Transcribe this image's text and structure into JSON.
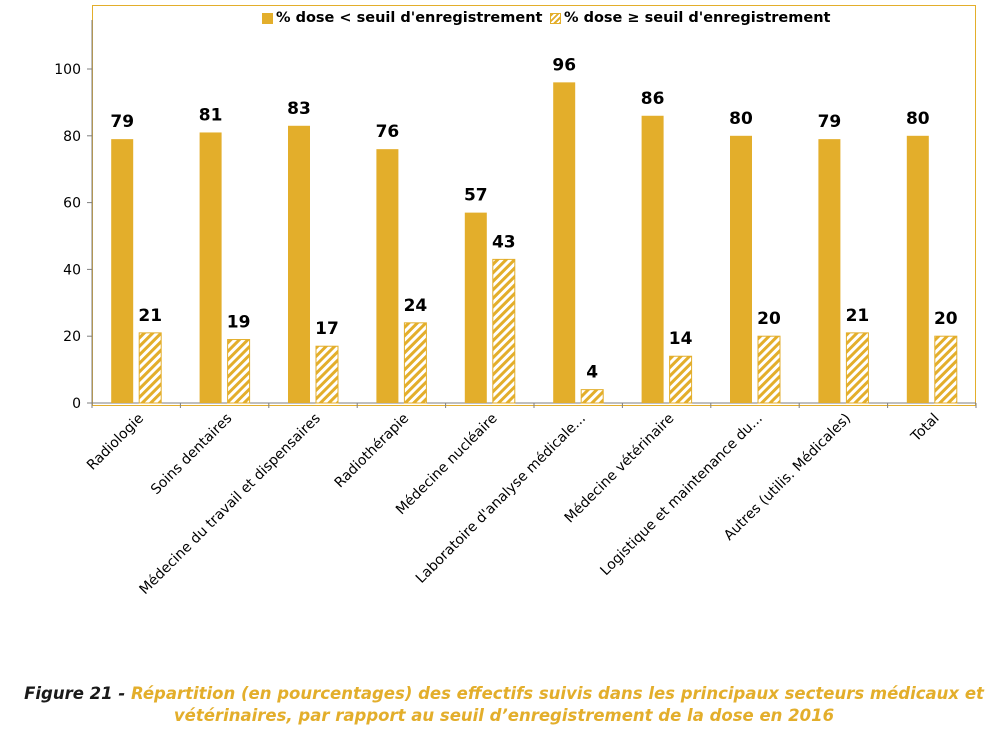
{
  "chart_data": {
    "type": "bar",
    "categories": [
      "Radiologie",
      "Soins dentaires",
      "Médecine du travail et dispensaires",
      "Radiothérapie",
      "Médecine nucléaire",
      "Laboratoire d'analyse médicale...",
      "Médecine vétérinaire",
      "Logistique et maintenance du...",
      "Autres (utilis. Médicales)",
      "Total"
    ],
    "series": [
      {
        "name": "% dose < seuil d'enregistrement",
        "values": [
          79,
          81,
          83,
          76,
          57,
          96,
          86,
          80,
          79,
          80
        ],
        "style": "solid",
        "color": "#E3AE2B"
      },
      {
        "name": "% dose ≥ seuil d'enregistrement",
        "values": [
          21,
          19,
          17,
          24,
          43,
          4,
          14,
          20,
          21,
          20
        ],
        "style": "hatched",
        "color": "#E3AE2B"
      }
    ],
    "ylim": [
      0,
      120
    ],
    "yticks": [
      0,
      20,
      40,
      60,
      80,
      100
    ],
    "grid": false,
    "legend_position": "top",
    "data_labels": true
  },
  "caption": {
    "label": "Figure 21 - ",
    "text": "Répartition (en pourcentages) des effectifs suivis dans les principaux secteurs médicaux et vétérinaires, par rapport au seuil d’enregistrement de la dose en 2016"
  }
}
